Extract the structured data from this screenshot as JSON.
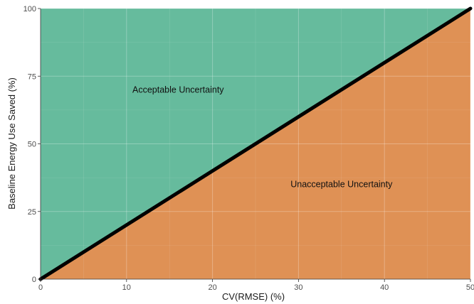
{
  "chart_data": {
    "type": "area",
    "xlabel": "CV(RMSE) (%)",
    "ylabel": "Baseline Energy Use Saved (%)",
    "xlim": [
      0,
      50
    ],
    "ylim": [
      0,
      100
    ],
    "x_ticks": [
      0,
      10,
      20,
      30,
      40,
      50
    ],
    "y_ticks": [
      0,
      25,
      50,
      75,
      100
    ],
    "x_tick_labels": [
      "0",
      "10",
      "20",
      "30",
      "40",
      "50"
    ],
    "y_tick_labels": [
      "0",
      "25",
      "50",
      "75",
      "100"
    ],
    "grid": true,
    "boundary_line": {
      "x": [
        0,
        50
      ],
      "y": [
        0,
        100
      ],
      "color": "#000000"
    },
    "regions": [
      {
        "label": "Acceptable Uncertainty",
        "side": "above",
        "color": "#66bb9d",
        "label_at": [
          16,
          70
        ]
      },
      {
        "label": "Unacceptable Uncertainty",
        "side": "below",
        "color": "#df9155",
        "label_at": [
          35,
          35
        ]
      }
    ]
  }
}
